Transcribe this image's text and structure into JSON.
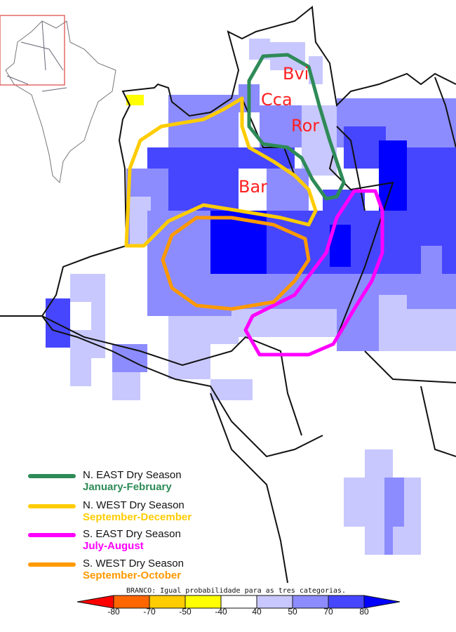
{
  "map": {
    "city_labels": [
      "Bvi",
      "Cca",
      "Ror",
      "Bar"
    ],
    "label_color": "#ff2020",
    "probability_colors": {
      "light": "#c8c8ff",
      "medium": "#8c8cff",
      "strong": "#4646ff",
      "darkest": "#0000ff"
    }
  },
  "legend": [
    {
      "region": "N. EAST Dry Season",
      "months": "January-February",
      "color": "#2e8b57"
    },
    {
      "region": "N. WEST Dry Season",
      "months": "September-December",
      "color": "#ffcc00"
    },
    {
      "region": "S. EAST Dry Season",
      "months": "July-August",
      "color": "#ff00ff"
    },
    {
      "region": "S. WEST Dry Season",
      "months": "September-October",
      "color": "#ff9900"
    }
  ],
  "colorbar": {
    "title": "BRANCO: Igual probabilidade para as tres categorias.",
    "ticks": [
      "-80",
      "-70",
      "-50",
      "-40",
      "40",
      "50",
      "70",
      "80"
    ],
    "colors": [
      "#ff0000",
      "#ff6600",
      "#ffcc00",
      "#ffff00",
      "#ffffff",
      "#c8c8ff",
      "#8c8cff",
      "#4646ff",
      "#0000ff"
    ]
  }
}
